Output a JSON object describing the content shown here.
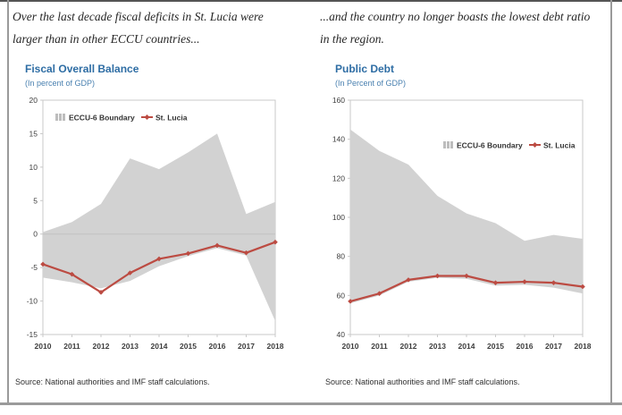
{
  "page": {
    "panels": [
      {
        "caption_line1": "Over the last decade fiscal deficits in St. Lucia were",
        "caption_line2": "larger than in other ECCU countries...",
        "title": "Fiscal Overall Balance",
        "subtitle": "(In percent of GDP)",
        "source": "Source: National authorities and IMF staff calculations."
      },
      {
        "caption_line1": "...and the country no longer boasts the lowest debt ratio",
        "caption_line2": "in the region.",
        "title": "Public Debt",
        "subtitle": "(In Percent of GDP)",
        "source": "Source: National authorities and IMF staff calculations."
      }
    ]
  },
  "colors": {
    "title_blue": "#2e6da4",
    "subtitle_blue": "#4a81b0",
    "band_gray": "#d2d2d2",
    "line_red": "#bc4b42",
    "axis_text": "#3d3d3d",
    "plot_frame": "#c9c9c9",
    "zero_gridline": "#c2c2c2",
    "legend_text": "#333333"
  },
  "chart_data": [
    {
      "type": "area",
      "title": "Fiscal Overall Balance",
      "subtitle": "(In percent of GDP)",
      "x": [
        2010,
        2011,
        2012,
        2013,
        2014,
        2015,
        2016,
        2017,
        2018
      ],
      "ylim": [
        -15,
        20
      ],
      "yticks": [
        20,
        15,
        10,
        5,
        0,
        -5,
        -10,
        -15
      ],
      "zero_gridline": true,
      "grid": false,
      "legend_position": "top-left",
      "series": [
        {
          "name": "ECCU-6 Boundary",
          "type": "band",
          "upper": [
            0.3,
            1.8,
            4.5,
            11.3,
            9.7,
            12.2,
            15.0,
            3.0,
            4.8
          ],
          "lower": [
            -6.5,
            -7.2,
            -8.1,
            -7.0,
            -4.8,
            -3.3,
            -2.1,
            -3.2,
            -13.0
          ]
        },
        {
          "name": "St. Lucia",
          "type": "line",
          "values": [
            -4.5,
            -6.0,
            -8.7,
            -5.8,
            -3.7,
            -2.9,
            -1.7,
            -2.8,
            -1.2
          ]
        }
      ]
    },
    {
      "type": "area",
      "title": "Public Debt",
      "subtitle": "(In Percent of GDP)",
      "x": [
        2010,
        2011,
        2012,
        2013,
        2014,
        2015,
        2016,
        2017,
        2018
      ],
      "ylim": [
        40,
        160
      ],
      "yticks": [
        160,
        140,
        120,
        100,
        80,
        60,
        40
      ],
      "zero_gridline": false,
      "grid": false,
      "legend_position": "inside-right",
      "series": [
        {
          "name": "ECCU-6 Boundary",
          "type": "band",
          "upper": [
            145,
            134,
            127,
            111,
            102,
            97,
            88,
            91,
            89
          ],
          "lower": [
            56,
            60,
            67,
            69,
            68.5,
            65,
            65.5,
            64,
            61
          ]
        },
        {
          "name": "St. Lucia",
          "type": "line",
          "values": [
            57,
            61,
            68,
            70,
            70,
            66.5,
            67,
            66.5,
            64.5
          ]
        }
      ]
    }
  ]
}
